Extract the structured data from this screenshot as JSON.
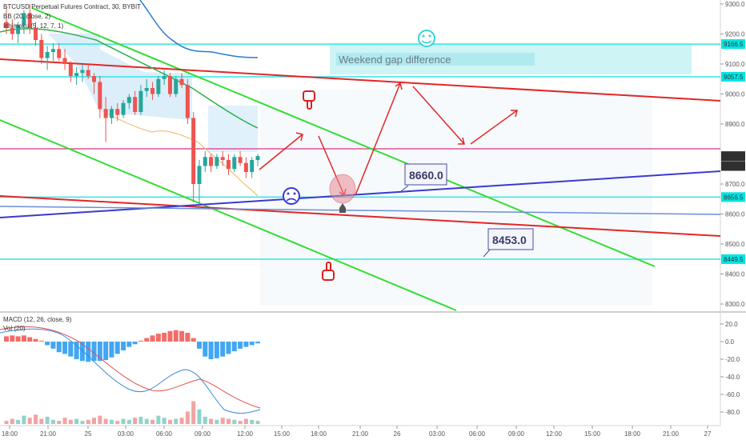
{
  "legend": {
    "title": "BTCUSD Perpetual Futures Contract, 30, BYBIT",
    "bb": "BB (20, close, 2)",
    "ichimoku": "Ichimoku (5, 12, 7, 1)"
  },
  "macd_legend": {
    "macd": "MACD (12, 26, close, 9)",
    "vol": "Vol (20)"
  },
  "annotations": {
    "weekend_gap": "Weekend gap difference",
    "callout_8660": "8660.0",
    "callout_8453": "8453.0"
  },
  "price_tags": [
    {
      "label": "9166.5",
      "value": 9166.5,
      "color": "#00e5e5"
    },
    {
      "label": "9057.5",
      "value": 9057.5,
      "color": "#00e5e5"
    },
    {
      "label": "8793.0",
      "value": 8793.0,
      "color": "#3b3b3b"
    },
    {
      "label": "06:44",
      "value": 8760,
      "color": "#3b3b3b"
    },
    {
      "label": "8656.5",
      "value": 8656.5,
      "color": "#00e5e5"
    },
    {
      "label": "8449.5",
      "value": 8449.5,
      "color": "#00e5e5"
    }
  ],
  "chart_data": [
    {
      "type": "candlestick",
      "title": "BTCUSD Perpetual Futures Contract, 30, BYBIT",
      "y_ticks": [
        9300,
        9200,
        9100,
        9000,
        8900,
        8700,
        8600,
        8500,
        8400,
        8300
      ],
      "ylim": [
        8270,
        9320
      ],
      "x_ticks": [
        "18:00",
        "21:00",
        "25",
        "03:00",
        "06:00",
        "09:00",
        "12:00",
        "15:00",
        "18:00",
        "21:00",
        "26",
        "03:00",
        "06:00",
        "09:00",
        "12:00",
        "15:00",
        "18:00",
        "21:00",
        "27"
      ],
      "candles": [
        {
          "o": 9240,
          "h": 9290,
          "l": 9200,
          "c": 9220
        },
        {
          "o": 9220,
          "h": 9250,
          "l": 9180,
          "c": 9200
        },
        {
          "o": 9200,
          "h": 9240,
          "l": 9170,
          "c": 9230
        },
        {
          "o": 9230,
          "h": 9280,
          "l": 9200,
          "c": 9270
        },
        {
          "o": 9270,
          "h": 9300,
          "l": 9200,
          "c": 9220
        },
        {
          "o": 9220,
          "h": 9240,
          "l": 9160,
          "c": 9180
        },
        {
          "o": 9180,
          "h": 9200,
          "l": 9100,
          "c": 9120
        },
        {
          "o": 9120,
          "h": 9160,
          "l": 9080,
          "c": 9140
        },
        {
          "o": 9140,
          "h": 9170,
          "l": 9110,
          "c": 9150
        },
        {
          "o": 9150,
          "h": 9170,
          "l": 9110,
          "c": 9120
        },
        {
          "o": 9120,
          "h": 9150,
          "l": 9080,
          "c": 9100
        },
        {
          "o": 9100,
          "h": 9110,
          "l": 9040,
          "c": 9060
        },
        {
          "o": 9060,
          "h": 9090,
          "l": 9030,
          "c": 9070
        },
        {
          "o": 9070,
          "h": 9100,
          "l": 9040,
          "c": 9080
        },
        {
          "o": 9080,
          "h": 9095,
          "l": 9050,
          "c": 9060
        },
        {
          "o": 9060,
          "h": 9070,
          "l": 9000,
          "c": 9040
        },
        {
          "o": 9040,
          "h": 9060,
          "l": 8920,
          "c": 8950
        },
        {
          "o": 8950,
          "h": 8990,
          "l": 8840,
          "c": 8920
        },
        {
          "o": 8920,
          "h": 8960,
          "l": 8900,
          "c": 8950
        },
        {
          "o": 8950,
          "h": 8970,
          "l": 8910,
          "c": 8930
        },
        {
          "o": 8930,
          "h": 8980,
          "l": 8920,
          "c": 8970
        },
        {
          "o": 8970,
          "h": 9000,
          "l": 8950,
          "c": 8990
        },
        {
          "o": 8990,
          "h": 9010,
          "l": 8930,
          "c": 8940
        },
        {
          "o": 8940,
          "h": 9030,
          "l": 8930,
          "c": 9010
        },
        {
          "o": 9010,
          "h": 9050,
          "l": 8990,
          "c": 9020
        },
        {
          "o": 9020,
          "h": 9040,
          "l": 8980,
          "c": 9000
        },
        {
          "o": 9000,
          "h": 9060,
          "l": 8990,
          "c": 9050
        },
        {
          "o": 9050,
          "h": 9080,
          "l": 9030,
          "c": 9060
        },
        {
          "o": 9060,
          "h": 9070,
          "l": 8990,
          "c": 9000
        },
        {
          "o": 9000,
          "h": 9060,
          "l": 8990,
          "c": 9050
        },
        {
          "o": 9050,
          "h": 9070,
          "l": 9020,
          "c": 9030
        },
        {
          "o": 9030,
          "h": 9050,
          "l": 8900,
          "c": 8920
        },
        {
          "o": 8920,
          "h": 8940,
          "l": 8640,
          "c": 8700
        },
        {
          "o": 8700,
          "h": 8780,
          "l": 8620,
          "c": 8760
        },
        {
          "o": 8760,
          "h": 8810,
          "l": 8740,
          "c": 8790
        },
        {
          "o": 8790,
          "h": 8800,
          "l": 8740,
          "c": 8760
        },
        {
          "o": 8760,
          "h": 8800,
          "l": 8750,
          "c": 8790
        },
        {
          "o": 8790,
          "h": 8810,
          "l": 8760,
          "c": 8780
        },
        {
          "o": 8780,
          "h": 8800,
          "l": 8730,
          "c": 8750
        },
        {
          "o": 8750,
          "h": 8800,
          "l": 8740,
          "c": 8790
        },
        {
          "o": 8790,
          "h": 8810,
          "l": 8760,
          "c": 8770
        },
        {
          "o": 8770,
          "h": 8790,
          "l": 8720,
          "c": 8740
        },
        {
          "o": 8740,
          "h": 8790,
          "l": 8720,
          "c": 8780
        },
        {
          "o": 8780,
          "h": 8800,
          "l": 8760,
          "c": 8793
        }
      ],
      "horizontal_levels": [
        9166.5,
        9057.5,
        8656.5,
        8449.5
      ]
    },
    {
      "type": "bar",
      "title": "MACD (12, 26, close, 9)",
      "y_ticks": [
        20.0,
        0.0,
        -20.0,
        -40.0,
        -60.0,
        -80.0
      ],
      "ylim": [
        -90,
        30
      ],
      "histogram": [
        6,
        7,
        6,
        7,
        5,
        3,
        1,
        -4,
        -8,
        -12,
        -14,
        -17,
        -20,
        -22,
        -23,
        -22,
        -22,
        -21,
        -18,
        -14,
        -10,
        -6,
        -3,
        1,
        4,
        7,
        9,
        10,
        12,
        13,
        12,
        10,
        4,
        -8,
        -17,
        -20,
        -19,
        -17,
        -14,
        -11,
        -8,
        -6,
        -4,
        -2
      ],
      "volume": [
        3,
        5,
        4,
        8,
        6,
        9,
        5,
        7,
        4,
        3,
        6,
        4,
        5,
        3,
        4,
        6,
        8,
        5,
        4,
        3,
        5,
        4,
        6,
        7,
        5,
        4,
        8,
        6,
        4,
        5,
        6,
        12,
        22,
        14,
        7,
        5,
        4,
        6,
        5,
        4,
        3,
        5,
        4,
        3
      ]
    }
  ]
}
